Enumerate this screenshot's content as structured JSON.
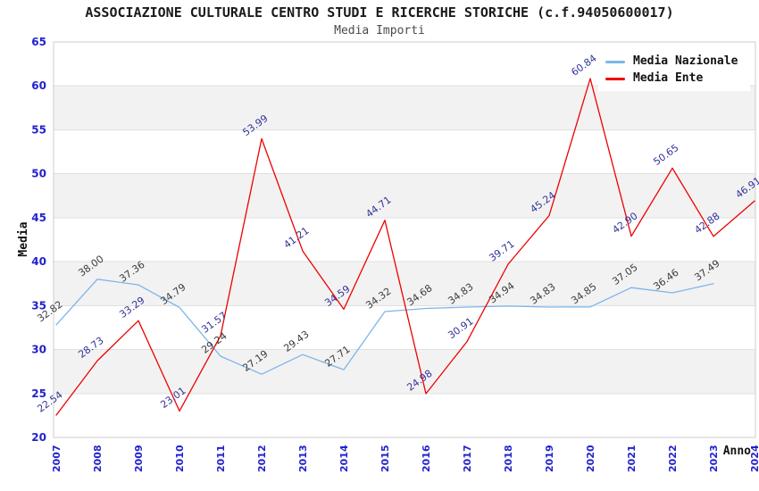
{
  "header": {
    "title": "ASSOCIAZIONE CULTURALE CENTRO STUDI E RICERCHE STORICHE (c.f.94050600017)",
    "subtitle": "Media Importi"
  },
  "chart_data": {
    "type": "line",
    "x": [
      "2007",
      "2008",
      "2009",
      "2010",
      "2011",
      "2012",
      "2013",
      "2014",
      "2015",
      "2016",
      "2017",
      "2018",
      "2019",
      "2020",
      "2021",
      "2022",
      "2023",
      "2024"
    ],
    "xlabel": "Anno",
    "ylabel": "Media",
    "ylim": [
      20,
      65
    ],
    "yticks": [
      20,
      25,
      30,
      35,
      40,
      45,
      50,
      55,
      60,
      65
    ],
    "grid": true,
    "band_fill": "#f2f2f2",
    "gridline_color": "#e0e0e0",
    "plot_border_color": "#cccccc",
    "axis_text_color": "#2222cc",
    "legend_position": "top-right",
    "series": [
      {
        "name": "Media Nazionale",
        "color": "#7cb5ec",
        "label_color": "#3c3c3c",
        "values": [
          32.82,
          38.0,
          37.36,
          34.79,
          29.24,
          27.19,
          29.43,
          27.71,
          34.32,
          34.68,
          34.83,
          34.94,
          34.83,
          34.85,
          37.05,
          36.46,
          37.49,
          null
        ]
      },
      {
        "name": "Media Ente",
        "color": "#ee0000",
        "label_color": "#333399",
        "values": [
          22.54,
          28.73,
          33.29,
          23.01,
          31.57,
          53.99,
          41.21,
          34.59,
          44.71,
          24.98,
          30.91,
          39.71,
          45.24,
          60.84,
          42.9,
          50.65,
          42.88,
          46.91
        ]
      }
    ]
  }
}
